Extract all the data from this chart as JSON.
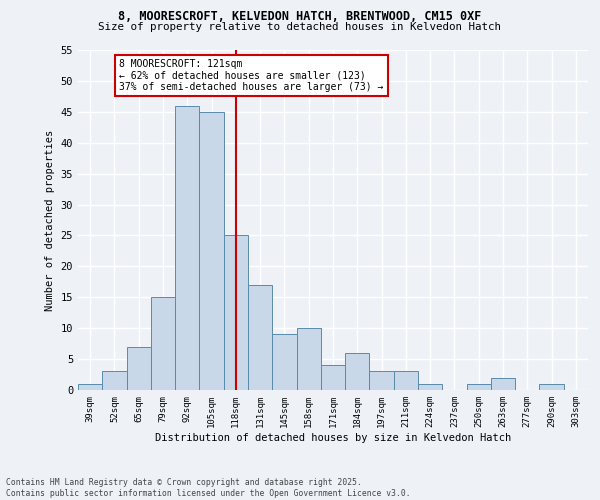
{
  "title_line1": "8, MOORESCROFT, KELVEDON HATCH, BRENTWOOD, CM15 0XF",
  "title_line2": "Size of property relative to detached houses in Kelvedon Hatch",
  "xlabel": "Distribution of detached houses by size in Kelvedon Hatch",
  "ylabel": "Number of detached properties",
  "categories": [
    "39sqm",
    "52sqm",
    "65sqm",
    "79sqm",
    "92sqm",
    "105sqm",
    "118sqm",
    "131sqm",
    "145sqm",
    "158sqm",
    "171sqm",
    "184sqm",
    "197sqm",
    "211sqm",
    "224sqm",
    "237sqm",
    "250sqm",
    "263sqm",
    "277sqm",
    "290sqm",
    "303sqm"
  ],
  "values": [
    1,
    3,
    7,
    15,
    46,
    45,
    25,
    17,
    9,
    10,
    4,
    6,
    3,
    3,
    1,
    0,
    1,
    2,
    0,
    1,
    0
  ],
  "bar_color": "#c8d8e8",
  "bar_edge_color": "#5a8aaa",
  "vline_x_index": 6.0,
  "vline_color": "#cc0000",
  "annotation_text": "8 MOORESCROFT: 121sqm\n← 62% of detached houses are smaller (123)\n37% of semi-detached houses are larger (73) →",
  "annotation_box_color": "#cc0000",
  "background_color": "#eef2f7",
  "grid_color": "#ffffff",
  "ylim": [
    0,
    55
  ],
  "yticks": [
    0,
    5,
    10,
    15,
    20,
    25,
    30,
    35,
    40,
    45,
    50,
    55
  ],
  "footnote": "Contains HM Land Registry data © Crown copyright and database right 2025.\nContains public sector information licensed under the Open Government Licence v3.0."
}
